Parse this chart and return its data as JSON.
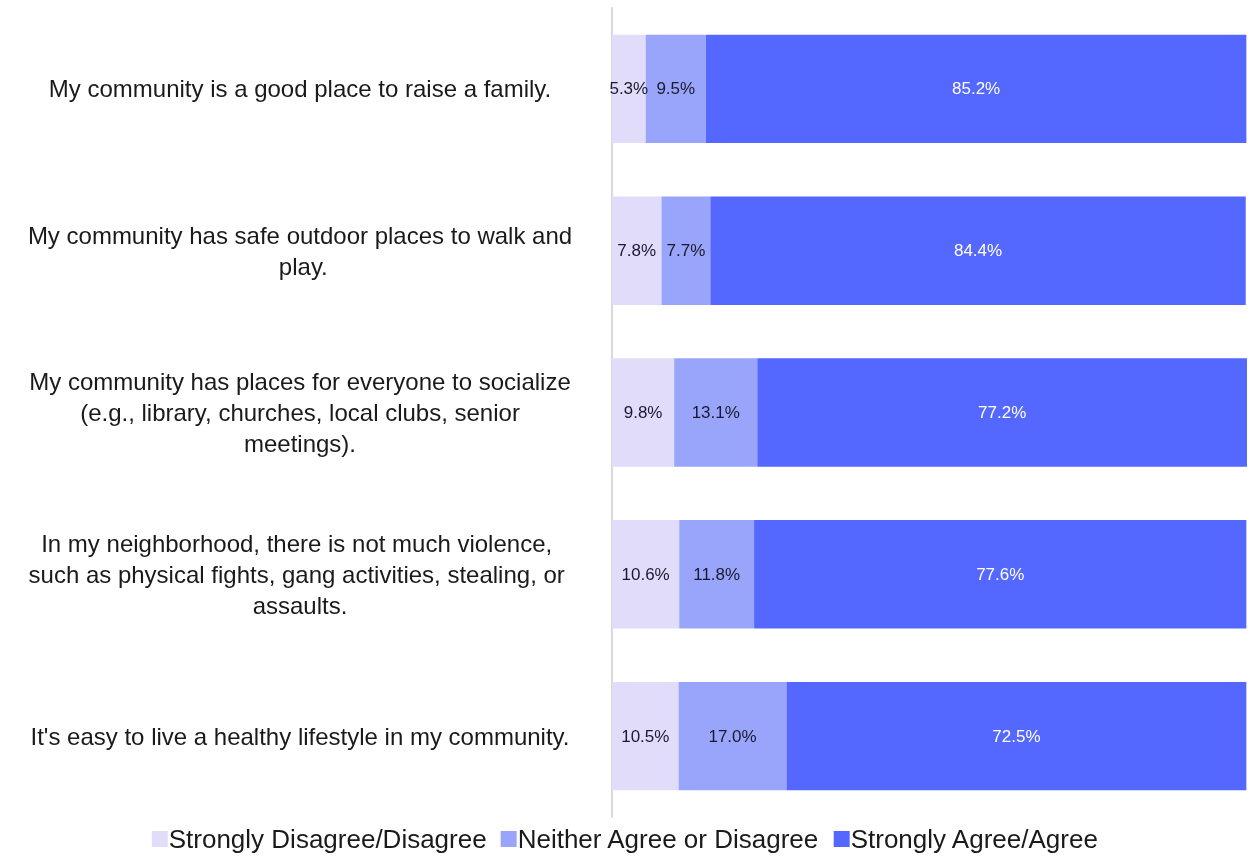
{
  "chart_data": {
    "type": "bar",
    "orientation": "horizontal",
    "stacked": true,
    "categories": [
      "My community is a good place to raise a family.",
      "My community has safe outdoor places to walk and play.",
      "My community has places for everyone to socialize (e.g., library, churches, local clubs, senior meetings).",
      "In my neighborhood, there is not much violence, such as physical fights, gang activities, stealing, or assaults.",
      "It's easy to live a healthy lifestyle in my community."
    ],
    "series": [
      {
        "name": "Strongly Disagree/Disagree",
        "color": "#e2dcfb",
        "values": [
          5.3,
          7.8,
          9.8,
          10.6,
          10.5
        ],
        "value_labels": [
          "5.3%",
          "7.8%",
          "9.8%",
          "10.6%",
          "10.5%"
        ]
      },
      {
        "name": "Neither Agree or Disagree",
        "color": "#99a5fb",
        "values": [
          9.5,
          7.7,
          13.1,
          11.8,
          17.0
        ],
        "value_labels": [
          "9.5%",
          "7.7%",
          "13.1%",
          "11.8%",
          "17.0%"
        ]
      },
      {
        "name": "Strongly Agree/Agree",
        "color": "#5468ff",
        "values": [
          85.2,
          84.4,
          77.2,
          77.6,
          72.5
        ],
        "value_labels": [
          "85.2%",
          "84.4%",
          "77.2%",
          "77.6%",
          "72.5%"
        ]
      }
    ],
    "legend": "bottom",
    "tick_labels": "y"
  }
}
